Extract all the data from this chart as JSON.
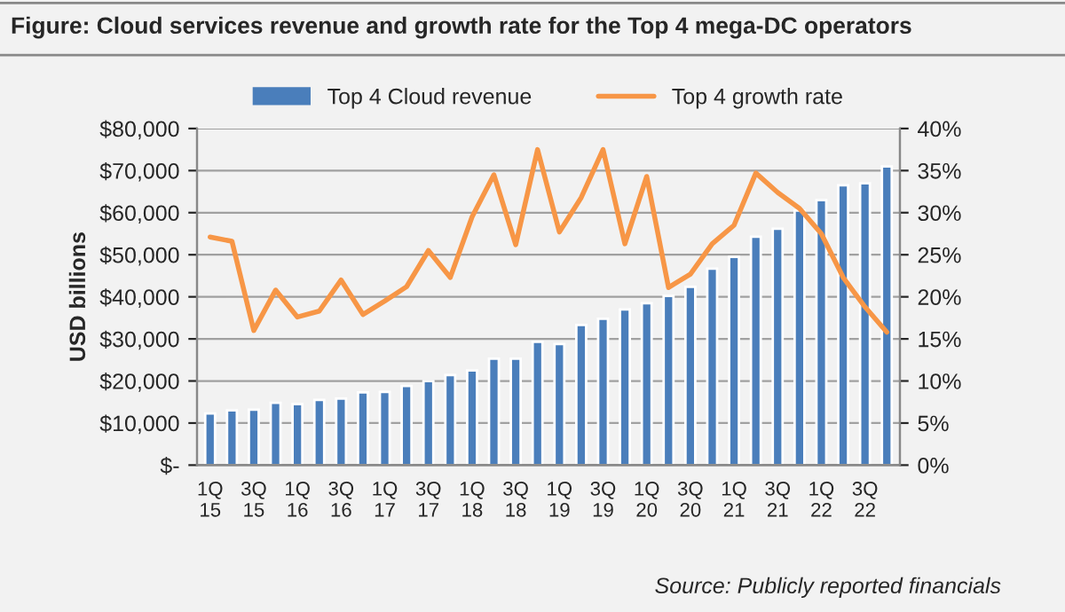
{
  "chart_data": {
    "type": "bar",
    "title": "Figure: Cloud services revenue and growth rate for the Top 4 mega-DC operators",
    "ylabel": "USD billions",
    "categories": [
      "1Q\n15",
      null,
      "3Q\n15",
      null,
      "1Q\n16",
      null,
      "3Q\n16",
      null,
      "1Q\n17",
      null,
      "3Q\n17",
      null,
      "1Q\n18",
      null,
      "3Q\n18",
      null,
      "1Q\n19",
      null,
      "3Q\n19",
      null,
      "1Q\n20",
      null,
      "3Q\n20",
      null,
      "1Q\n21",
      null,
      "3Q\n21",
      null,
      "1Q\n22",
      null,
      "3Q\n22",
      null
    ],
    "series": [
      {
        "name": "Top 4 Cloud revenue",
        "color": "#4a7ebb",
        "values": [
          12300,
          13000,
          13200,
          14800,
          14500,
          15500,
          15800,
          17300,
          17400,
          18800,
          20000,
          21400,
          22500,
          25300,
          25300,
          29300,
          28800,
          33300,
          34800,
          37000,
          38500,
          40200,
          42400,
          46700,
          49500,
          54300,
          56200,
          60500,
          63000,
          66500,
          67000,
          71000
        ]
      },
      {
        "name": "Top 4 growth rate",
        "type": "line",
        "axis": "y2",
        "color": "#f79646",
        "values": [
          27.1,
          26.6,
          16.0,
          20.8,
          17.6,
          18.3,
          22.0,
          17.9,
          19.5,
          21.2,
          25.5,
          22.3,
          29.5,
          34.5,
          26.2,
          37.5,
          27.7,
          31.8,
          37.5,
          26.3,
          34.3,
          21.1,
          22.7,
          26.3,
          28.5,
          34.7,
          32.4,
          30.5,
          27.5,
          22.3,
          18.8,
          15.8
        ]
      }
    ],
    "ylim": [
      0,
      80000
    ],
    "yticks": [
      {
        "value": 0,
        "label": "$-"
      },
      {
        "value": 10000,
        "label": "$10,000"
      },
      {
        "value": 20000,
        "label": "$20,000"
      },
      {
        "value": 30000,
        "label": "$30,000"
      },
      {
        "value": 40000,
        "label": "$40,000"
      },
      {
        "value": 50000,
        "label": "$50,000"
      },
      {
        "value": 60000,
        "label": "$60,000"
      },
      {
        "value": 70000,
        "label": "$70,000"
      },
      {
        "value": 80000,
        "label": "$80,000"
      }
    ],
    "y2lim": [
      0,
      40
    ],
    "y2ticks": [
      {
        "value": 0,
        "label": "0%"
      },
      {
        "value": 5,
        "label": "5%"
      },
      {
        "value": 10,
        "label": "10%"
      },
      {
        "value": 15,
        "label": "15%"
      },
      {
        "value": 20,
        "label": "20%"
      },
      {
        "value": 25,
        "label": "25%"
      },
      {
        "value": 30,
        "label": "30%"
      },
      {
        "value": 35,
        "label": "35%"
      },
      {
        "value": 40,
        "label": "40%"
      }
    ],
    "grid": "y",
    "legend": "top",
    "annotations": [
      "Source: Publicly reported financials"
    ]
  }
}
